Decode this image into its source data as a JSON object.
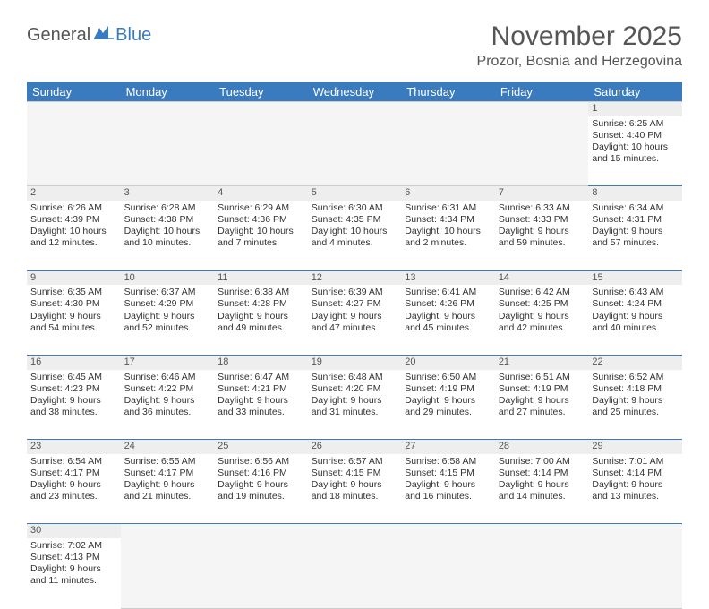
{
  "logo": {
    "text1": "General",
    "text2": "Blue"
  },
  "title": "November 2025",
  "location": "Prozor, Bosnia and Herzegovina",
  "header_bg": "#3a7bbf",
  "header_fg": "#ffffff",
  "day_stripe_bg": "#eeeeee",
  "empty_bg": "#f5f5f5",
  "rule_color": "#3a7bbf",
  "weekdays": [
    "Sunday",
    "Monday",
    "Tuesday",
    "Wednesday",
    "Thursday",
    "Friday",
    "Saturday"
  ],
  "first_day_index": 6,
  "days": [
    {
      "n": 1,
      "sunrise": "Sunrise: 6:25 AM",
      "sunset": "Sunset: 4:40 PM",
      "daylight": "Daylight: 10 hours and 15 minutes."
    },
    {
      "n": 2,
      "sunrise": "Sunrise: 6:26 AM",
      "sunset": "Sunset: 4:39 PM",
      "daylight": "Daylight: 10 hours and 12 minutes."
    },
    {
      "n": 3,
      "sunrise": "Sunrise: 6:28 AM",
      "sunset": "Sunset: 4:38 PM",
      "daylight": "Daylight: 10 hours and 10 minutes."
    },
    {
      "n": 4,
      "sunrise": "Sunrise: 6:29 AM",
      "sunset": "Sunset: 4:36 PM",
      "daylight": "Daylight: 10 hours and 7 minutes."
    },
    {
      "n": 5,
      "sunrise": "Sunrise: 6:30 AM",
      "sunset": "Sunset: 4:35 PM",
      "daylight": "Daylight: 10 hours and 4 minutes."
    },
    {
      "n": 6,
      "sunrise": "Sunrise: 6:31 AM",
      "sunset": "Sunset: 4:34 PM",
      "daylight": "Daylight: 10 hours and 2 minutes."
    },
    {
      "n": 7,
      "sunrise": "Sunrise: 6:33 AM",
      "sunset": "Sunset: 4:33 PM",
      "daylight": "Daylight: 9 hours and 59 minutes."
    },
    {
      "n": 8,
      "sunrise": "Sunrise: 6:34 AM",
      "sunset": "Sunset: 4:31 PM",
      "daylight": "Daylight: 9 hours and 57 minutes."
    },
    {
      "n": 9,
      "sunrise": "Sunrise: 6:35 AM",
      "sunset": "Sunset: 4:30 PM",
      "daylight": "Daylight: 9 hours and 54 minutes."
    },
    {
      "n": 10,
      "sunrise": "Sunrise: 6:37 AM",
      "sunset": "Sunset: 4:29 PM",
      "daylight": "Daylight: 9 hours and 52 minutes."
    },
    {
      "n": 11,
      "sunrise": "Sunrise: 6:38 AM",
      "sunset": "Sunset: 4:28 PM",
      "daylight": "Daylight: 9 hours and 49 minutes."
    },
    {
      "n": 12,
      "sunrise": "Sunrise: 6:39 AM",
      "sunset": "Sunset: 4:27 PM",
      "daylight": "Daylight: 9 hours and 47 minutes."
    },
    {
      "n": 13,
      "sunrise": "Sunrise: 6:41 AM",
      "sunset": "Sunset: 4:26 PM",
      "daylight": "Daylight: 9 hours and 45 minutes."
    },
    {
      "n": 14,
      "sunrise": "Sunrise: 6:42 AM",
      "sunset": "Sunset: 4:25 PM",
      "daylight": "Daylight: 9 hours and 42 minutes."
    },
    {
      "n": 15,
      "sunrise": "Sunrise: 6:43 AM",
      "sunset": "Sunset: 4:24 PM",
      "daylight": "Daylight: 9 hours and 40 minutes."
    },
    {
      "n": 16,
      "sunrise": "Sunrise: 6:45 AM",
      "sunset": "Sunset: 4:23 PM",
      "daylight": "Daylight: 9 hours and 38 minutes."
    },
    {
      "n": 17,
      "sunrise": "Sunrise: 6:46 AM",
      "sunset": "Sunset: 4:22 PM",
      "daylight": "Daylight: 9 hours and 36 minutes."
    },
    {
      "n": 18,
      "sunrise": "Sunrise: 6:47 AM",
      "sunset": "Sunset: 4:21 PM",
      "daylight": "Daylight: 9 hours and 33 minutes."
    },
    {
      "n": 19,
      "sunrise": "Sunrise: 6:48 AM",
      "sunset": "Sunset: 4:20 PM",
      "daylight": "Daylight: 9 hours and 31 minutes."
    },
    {
      "n": 20,
      "sunrise": "Sunrise: 6:50 AM",
      "sunset": "Sunset: 4:19 PM",
      "daylight": "Daylight: 9 hours and 29 minutes."
    },
    {
      "n": 21,
      "sunrise": "Sunrise: 6:51 AM",
      "sunset": "Sunset: 4:19 PM",
      "daylight": "Daylight: 9 hours and 27 minutes."
    },
    {
      "n": 22,
      "sunrise": "Sunrise: 6:52 AM",
      "sunset": "Sunset: 4:18 PM",
      "daylight": "Daylight: 9 hours and 25 minutes."
    },
    {
      "n": 23,
      "sunrise": "Sunrise: 6:54 AM",
      "sunset": "Sunset: 4:17 PM",
      "daylight": "Daylight: 9 hours and 23 minutes."
    },
    {
      "n": 24,
      "sunrise": "Sunrise: 6:55 AM",
      "sunset": "Sunset: 4:17 PM",
      "daylight": "Daylight: 9 hours and 21 minutes."
    },
    {
      "n": 25,
      "sunrise": "Sunrise: 6:56 AM",
      "sunset": "Sunset: 4:16 PM",
      "daylight": "Daylight: 9 hours and 19 minutes."
    },
    {
      "n": 26,
      "sunrise": "Sunrise: 6:57 AM",
      "sunset": "Sunset: 4:15 PM",
      "daylight": "Daylight: 9 hours and 18 minutes."
    },
    {
      "n": 27,
      "sunrise": "Sunrise: 6:58 AM",
      "sunset": "Sunset: 4:15 PM",
      "daylight": "Daylight: 9 hours and 16 minutes."
    },
    {
      "n": 28,
      "sunrise": "Sunrise: 7:00 AM",
      "sunset": "Sunset: 4:14 PM",
      "daylight": "Daylight: 9 hours and 14 minutes."
    },
    {
      "n": 29,
      "sunrise": "Sunrise: 7:01 AM",
      "sunset": "Sunset: 4:14 PM",
      "daylight": "Daylight: 9 hours and 13 minutes."
    },
    {
      "n": 30,
      "sunrise": "Sunrise: 7:02 AM",
      "sunset": "Sunset: 4:13 PM",
      "daylight": "Daylight: 9 hours and 11 minutes."
    }
  ]
}
